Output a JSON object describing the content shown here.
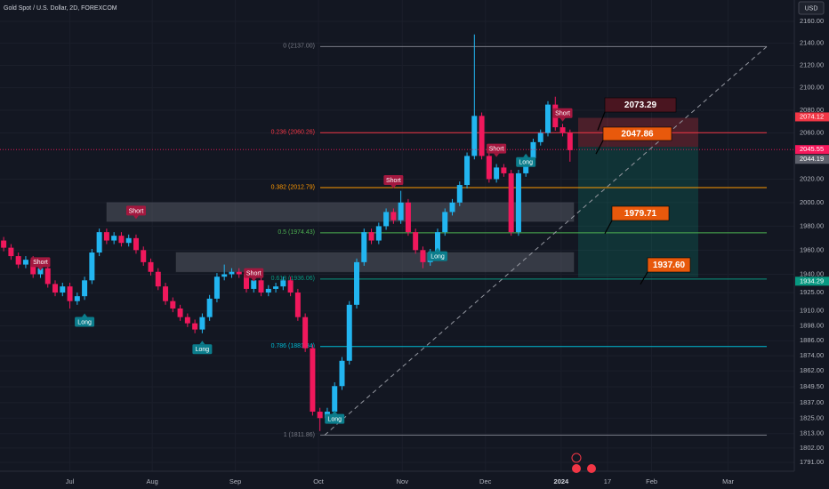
{
  "chart_data": {
    "type": "candlestick",
    "title": "Gold Spot / U.S. Dollar, 2D, FOREXCOM",
    "currency": "USD",
    "log": true,
    "up_color": "#22b5f0",
    "down_color": "#f0185c",
    "xlim": [
      -9.5,
      98.5
    ],
    "xticks": [
      {
        "value": 0,
        "label": "Jul"
      },
      {
        "value": 11.2,
        "label": "Aug"
      },
      {
        "value": 22.5,
        "label": "Sep"
      },
      {
        "value": 33.8,
        "label": "Oct"
      },
      {
        "value": 45.2,
        "label": "Nov"
      },
      {
        "value": 56.5,
        "label": "Dec"
      },
      {
        "value": 66.8,
        "label": "2024"
      },
      {
        "value": 73.1,
        "label": "17"
      },
      {
        "value": 79.1,
        "label": "Feb"
      },
      {
        "value": 89.5,
        "label": "Mar"
      }
    ],
    "ylim": [
      1784.3,
      2179.7
    ],
    "yticks": [
      {
        "value": 1791,
        "label": "1791.00"
      },
      {
        "value": 1802,
        "label": "1802.00"
      },
      {
        "value": 1813,
        "label": "1813.00"
      },
      {
        "value": 1825,
        "label": "1825.00"
      },
      {
        "value": 1837,
        "label": "1837.00"
      },
      {
        "value": 1849.5,
        "label": "1849.50"
      },
      {
        "value": 1862,
        "label": "1862.00"
      },
      {
        "value": 1874,
        "label": "1874.00"
      },
      {
        "value": 1886,
        "label": "1886.00"
      },
      {
        "value": 1898,
        "label": "1898.00"
      },
      {
        "value": 1910,
        "label": "1910.00"
      },
      {
        "value": 1925,
        "label": "1925.00"
      },
      {
        "value": 1940,
        "label": "1940.00"
      },
      {
        "value": 1960,
        "label": "1960.00"
      },
      {
        "value": 1980,
        "label": "1980.00"
      },
      {
        "value": 2000,
        "label": "2000.00"
      },
      {
        "value": 2020,
        "label": "2020.00"
      },
      {
        "value": 2060,
        "label": "2060.00"
      },
      {
        "value": 2080,
        "label": "2080.00"
      },
      {
        "value": 2100,
        "label": "2100.00"
      },
      {
        "value": 2120,
        "label": "2120.00"
      },
      {
        "value": 2140,
        "label": "2140.00"
      },
      {
        "value": 2160,
        "label": "2160.00"
      }
    ],
    "x": [
      -9,
      -8,
      -7,
      -6,
      -5,
      -4,
      -3,
      -2,
      -1,
      0,
      1,
      2,
      3,
      4,
      5,
      6,
      7,
      8,
      9,
      10,
      11,
      12,
      13,
      14,
      15,
      16,
      17,
      18,
      19,
      20,
      21,
      22,
      23,
      24,
      25,
      26,
      27,
      28,
      29,
      30,
      31,
      32,
      33,
      34,
      35,
      36,
      37,
      38,
      39,
      40,
      41,
      42,
      43,
      44,
      45,
      46,
      47,
      48,
      49,
      50,
      51,
      52,
      53,
      54,
      55,
      56,
      57,
      58,
      59,
      60,
      61,
      62,
      63,
      64,
      65,
      66,
      67,
      68
    ],
    "candles": [
      [
        1968,
        1971,
        1959,
        1962
      ],
      [
        1962,
        1965,
        1952,
        1955
      ],
      [
        1955,
        1958,
        1945,
        1948
      ],
      [
        1948,
        1955,
        1945,
        1952
      ],
      [
        1952,
        1955,
        1937,
        1940
      ],
      [
        1940,
        1948,
        1937,
        1945
      ],
      [
        1945,
        1948,
        1929,
        1932
      ],
      [
        1932,
        1935,
        1922,
        1925
      ],
      [
        1925,
        1933,
        1922,
        1930
      ],
      [
        1930,
        1933,
        1912,
        1918
      ],
      [
        1918,
        1925,
        1915,
        1922
      ],
      [
        1922,
        1938,
        1919,
        1935
      ],
      [
        1935,
        1961,
        1932,
        1958
      ],
      [
        1958,
        1978,
        1955,
        1975
      ],
      [
        1975,
        1978,
        1965,
        1968
      ],
      [
        1968,
        1975,
        1965,
        1972
      ],
      [
        1972,
        1975,
        1963,
        1966
      ],
      [
        1966,
        1973,
        1963,
        1970
      ],
      [
        1970,
        1973,
        1957,
        1960
      ],
      [
        1960,
        1963,
        1947,
        1950
      ],
      [
        1950,
        1953,
        1939,
        1942
      ],
      [
        1942,
        1945,
        1927,
        1930
      ],
      [
        1930,
        1933,
        1915,
        1918
      ],
      [
        1918,
        1921,
        1909,
        1912
      ],
      [
        1912,
        1915,
        1902,
        1905
      ],
      [
        1905,
        1908,
        1897,
        1900
      ],
      [
        1900,
        1903,
        1892,
        1895
      ],
      [
        1895,
        1908,
        1892,
        1905
      ],
      [
        1905,
        1923,
        1902,
        1920
      ],
      [
        1920,
        1941,
        1917,
        1938
      ],
      [
        1938,
        1948,
        1935,
        1940
      ],
      [
        1940,
        1945,
        1937,
        1942
      ],
      [
        1942,
        1945,
        1937,
        1940
      ],
      [
        1940,
        1943,
        1925,
        1928
      ],
      [
        1928,
        1938,
        1925,
        1935
      ],
      [
        1935,
        1938,
        1922,
        1925
      ],
      [
        1925,
        1931,
        1922,
        1928
      ],
      [
        1928,
        1933,
        1925,
        1930
      ],
      [
        1930,
        1938,
        1927,
        1935
      ],
      [
        1935,
        1938,
        1922,
        1925
      ],
      [
        1925,
        1928,
        1902,
        1905
      ],
      [
        1905,
        1908,
        1877,
        1880
      ],
      [
        1880,
        1883,
        1827,
        1830
      ],
      [
        1830,
        1833,
        1815,
        1825
      ],
      [
        1825,
        1833,
        1822,
        1830
      ],
      [
        1830,
        1853,
        1827,
        1850
      ],
      [
        1850,
        1873,
        1847,
        1870
      ],
      [
        1870,
        1918,
        1867,
        1915
      ],
      [
        1915,
        1953,
        1912,
        1950
      ],
      [
        1950,
        1978,
        1947,
        1975
      ],
      [
        1975,
        1978,
        1965,
        1968
      ],
      [
        1968,
        1983,
        1965,
        1980
      ],
      [
        1980,
        1995,
        1977,
        1992
      ],
      [
        1992,
        1995,
        1982,
        1985
      ],
      [
        1985,
        2010,
        1982,
        2000
      ],
      [
        2000,
        2003,
        1972,
        1975
      ],
      [
        1975,
        1978,
        1957,
        1960
      ],
      [
        1960,
        1963,
        1945,
        1950
      ],
      [
        1950,
        1961,
        1947,
        1958
      ],
      [
        1958,
        1978,
        1955,
        1975
      ],
      [
        1975,
        1995,
        1972,
        1992
      ],
      [
        1992,
        2003,
        1989,
        2000
      ],
      [
        2000,
        2018,
        1997,
        2015
      ],
      [
        2015,
        2043,
        2012,
        2040
      ],
      [
        2040,
        2148,
        2037,
        2075
      ],
      [
        2075,
        2078,
        2037,
        2040
      ],
      [
        2040,
        2043,
        2017,
        2020
      ],
      [
        2020,
        2033,
        2017,
        2030
      ],
      [
        2030,
        2033,
        2022,
        2025
      ],
      [
        2025,
        2028,
        1972,
        1975
      ],
      [
        1975,
        2028,
        1972,
        2025
      ],
      [
        2025,
        2041,
        2022,
        2038
      ],
      [
        2038,
        2055,
        2035,
        2052
      ],
      [
        2052,
        2063,
        2049,
        2060
      ],
      [
        2060,
        2088,
        2057,
        2085
      ],
      [
        2085,
        2092,
        2062,
        2065
      ],
      [
        2065,
        2068,
        2057,
        2060
      ],
      [
        2060,
        2063,
        2035,
        2045
      ]
    ],
    "fib_levels": [
      {
        "value": 2137.0,
        "label": "0 (2137.00)",
        "color": "#787b86"
      },
      {
        "value": 2060.26,
        "label": "0.236 (2060.26)",
        "color": "#f23645"
      },
      {
        "value": 2012.79,
        "label": "0.382 (2012.79)",
        "color": "#ff9800"
      },
      {
        "value": 1974.43,
        "label": "0.5 (1974.43)",
        "color": "#4caf50"
      },
      {
        "value": 1936.06,
        "label": "0.618 (1936.06)",
        "color": "#089981"
      },
      {
        "value": 1881.34,
        "label": "0.786 (1881.34)",
        "color": "#00bcd4"
      },
      {
        "value": 1811.86,
        "label": "1 (1811.86)",
        "color": "#787b86"
      }
    ],
    "zones": [
      [
        1984,
        2000
      ],
      [
        1942,
        1958
      ]
    ],
    "position": [
      {
        "value": 2073.29,
        "label": "2073.29"
      },
      {
        "value": 2047.86,
        "label": "2047.86"
      },
      {
        "value": 1979.71,
        "label": "1979.71"
      },
      {
        "value": 1937.6,
        "label": "1937.60"
      }
    ],
    "price_tags": [
      {
        "value": 2074.12,
        "label": "2074.12",
        "color": "#f23645"
      },
      {
        "value": 2045.55,
        "label": "2045.55",
        "color": "#f7185c"
      },
      {
        "value": 2044.19,
        "label": "2044.19",
        "color": "#5d606b"
      },
      {
        "value": 1934.29,
        "label": "1934.29",
        "color": "#089981"
      }
    ],
    "signals": [
      {
        "label": "Short",
        "x": 9,
        "price": 1986
      },
      {
        "label": "Short",
        "x": -4,
        "price": 1943
      },
      {
        "label": "Short",
        "x": 25,
        "price": 1934
      },
      {
        "label": "Short",
        "x": 44,
        "price": 2012
      },
      {
        "label": "Short",
        "x": 58,
        "price": 2039
      },
      {
        "label": "Short",
        "x": 67,
        "price": 2070
      },
      {
        "label": "Long",
        "x": 2,
        "price": 1908
      },
      {
        "label": "Long",
        "x": 18,
        "price": 1886
      },
      {
        "label": "Long",
        "x": 50,
        "price": 1962
      },
      {
        "label": "Long",
        "x": 62,
        "price": 2042
      },
      {
        "label": "Long",
        "x": 36,
        "price": 1831
      }
    ]
  }
}
